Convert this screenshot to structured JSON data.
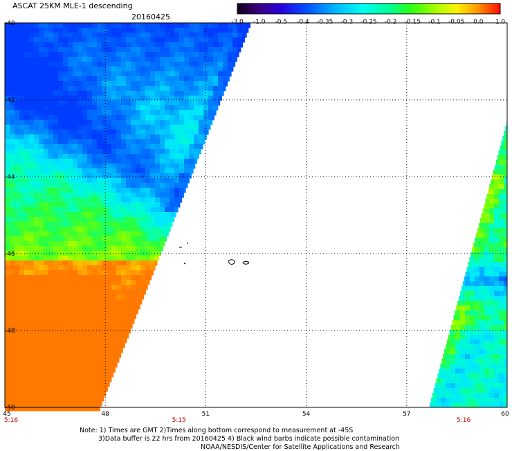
{
  "header": {
    "title": "ASCAT 25KM MLE-1 descending",
    "date": "20160425"
  },
  "colorbar": {
    "labels": [
      "-3.0",
      "-1.0",
      "-0.5",
      "-0.4",
      "-0.35",
      "-0.3",
      "-0.25",
      "-0.2",
      "-0.15",
      "-0.1",
      "-0.05",
      "0.0",
      "1.0"
    ],
    "colors": [
      "#1e0030",
      "#4a0090",
      "#2a00e0",
      "#0050ff",
      "#00a8ff",
      "#00e8ff",
      "#00ffd0",
      "#00ff60",
      "#50ff00",
      "#c8ff00",
      "#ffd000",
      "#ff8000",
      "#ff2000"
    ]
  },
  "axes": {
    "lat_labels": [
      "-40",
      "-42",
      "-44",
      "-46",
      "-48",
      "-50"
    ],
    "lon_labels": [
      "45",
      "48",
      "51",
      "54",
      "57",
      "60"
    ],
    "lat_range": [
      -50,
      -40
    ],
    "lon_range": [
      45,
      60
    ],
    "grid": "dotted"
  },
  "time_labels": [
    {
      "text": "5:16",
      "lon": 45
    },
    {
      "text": "5:15",
      "lon": 50.2
    },
    {
      "text": "5:16",
      "lon": 58.7
    }
  ],
  "notes": [
    "Note: 1) Times are GMT 2)Times along bottom correspond to measurement at -45S",
    "3)Data buffer is 22 hrs from 20160425 4) Black wind barbs indicate possible contamination",
    "NOAA/NESDIS/Center for Satellite Applications and Research"
  ]
}
